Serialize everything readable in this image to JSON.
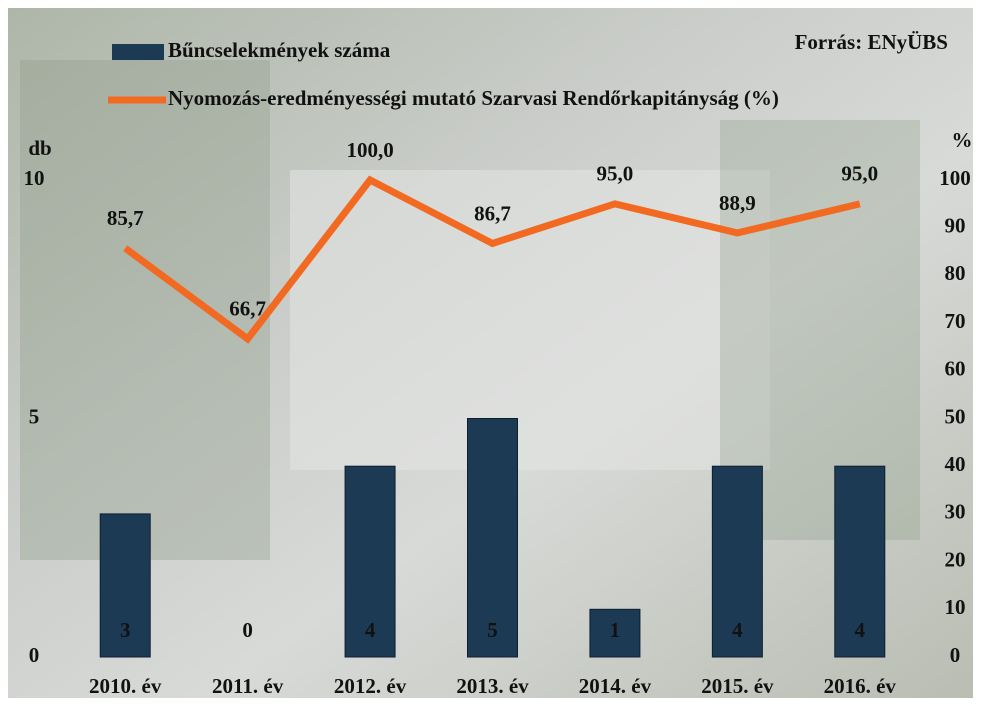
{
  "chart_data": {
    "type": "bar-line",
    "source": "Forrás: ENyÜBS",
    "categories": [
      "2010. év",
      "2011. év",
      "2012. év",
      "2013. év",
      "2014. év",
      "2015. év",
      "2016. év"
    ],
    "series": [
      {
        "name": "Bűncselekmények száma",
        "type": "bar",
        "color": "#1d3a55",
        "values": [
          3,
          0,
          4,
          5,
          1,
          4,
          4
        ]
      },
      {
        "name": "Nyomozás-eredményességi mutató Szarvasi Rendőrkapitányság (%)",
        "type": "line",
        "axis": "y2",
        "color": "#f26a21",
        "values": [
          85.7,
          66.7,
          100,
          86.7,
          95,
          88.9,
          95
        ],
        "value_labels": [
          "85,7",
          "66,7",
          "100,0",
          "86,7",
          "95,0",
          "88,9",
          "95,0"
        ]
      }
    ],
    "ylabel": "db",
    "ylim": [
      0,
      10
    ],
    "yticks": [
      0,
      5,
      10
    ],
    "y2label": "%",
    "y2lim": [
      0,
      100
    ],
    "y2ticks": [
      0,
      10,
      20,
      30,
      40,
      50,
      60,
      70,
      80,
      90,
      100
    ],
    "grid": false
  }
}
